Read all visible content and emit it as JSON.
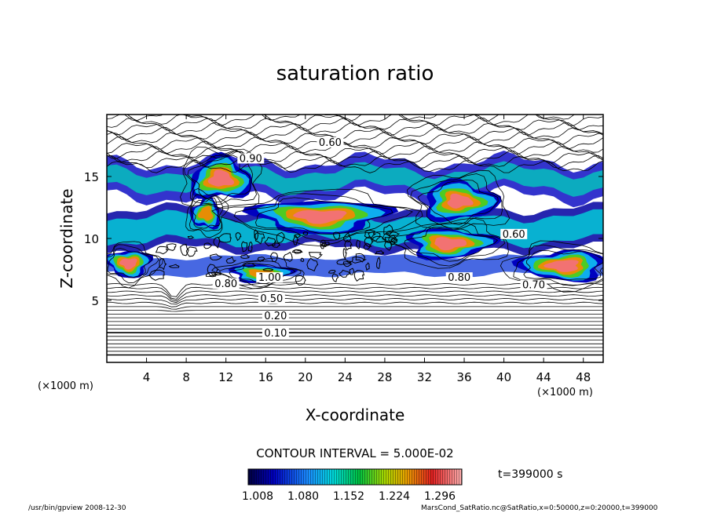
{
  "chart_data": {
    "type": "heatmap",
    "title": "saturation ratio",
    "xlabel": "X-coordinate",
    "ylabel": "Z-coordinate",
    "x_unit": "(×1000 m)",
    "z_unit": "(×1000 m)",
    "xlim": [
      0,
      50
    ],
    "ylim": [
      0,
      20
    ],
    "x_ticks": [
      4,
      8,
      12,
      16,
      20,
      24,
      28,
      32,
      36,
      40,
      44,
      48
    ],
    "y_ticks": [
      5,
      10,
      15
    ],
    "contour_interval_label": "CONTOUR INTERVAL = 5.000E-02",
    "time_label": "t=399000 s",
    "colorbar_ticks": [
      "1.008",
      "1.080",
      "1.152",
      "1.224",
      "1.296"
    ],
    "colorbar_range": [
      0.99,
      1.32
    ],
    "contour_labels": [
      {
        "text": "0.10",
        "x": 17.0,
        "z": 2.2
      },
      {
        "text": "0.20",
        "x": 17.0,
        "z": 3.6
      },
      {
        "text": "0.50",
        "x": 16.6,
        "z": 5.0
      },
      {
        "text": "1.00",
        "x": 16.4,
        "z": 6.7
      },
      {
        "text": "0.80",
        "x": 12.0,
        "z": 6.2
      },
      {
        "text": "0.70",
        "x": 43.0,
        "z": 6.1
      },
      {
        "text": "0.60",
        "x": 22.5,
        "z": 17.6
      },
      {
        "text": "0.90",
        "x": 14.5,
        "z": 16.3
      },
      {
        "text": "0.60",
        "x": 41.0,
        "z": 10.2
      },
      {
        "text": "0.80",
        "x": 35.5,
        "z": 6.7
      }
    ],
    "supersaturated_regions": [
      {
        "x": 21.5,
        "z": 11.8,
        "rx": 5.5,
        "rz": 1.1,
        "peak": 1.3
      },
      {
        "x": 34.5,
        "z": 9.6,
        "rx": 3.5,
        "rz": 1.0,
        "peak": 1.3
      },
      {
        "x": 35.5,
        "z": 13.0,
        "rx": 3.0,
        "rz": 1.3,
        "peak": 1.28
      },
      {
        "x": 11.5,
        "z": 14.8,
        "rx": 2.5,
        "rz": 1.4,
        "peak": 1.3
      },
      {
        "x": 10.0,
        "z": 12.0,
        "rx": 1.2,
        "rz": 1.0,
        "peak": 1.27
      },
      {
        "x": 46.0,
        "z": 7.8,
        "rx": 3.5,
        "rz": 1.0,
        "peak": 1.3
      },
      {
        "x": 2.2,
        "z": 8.0,
        "rx": 1.8,
        "rz": 0.9,
        "peak": 1.3
      },
      {
        "x": 15.5,
        "z": 7.2,
        "rx": 2.5,
        "rz": 0.6,
        "peak": 1.25
      }
    ],
    "footer_left": "/usr/bin/gpview   2008-12-30",
    "footer_right": "MarsCond_SatRatio.nc@SatRatio,x=0:50000,z=0:20000,t=399000"
  }
}
